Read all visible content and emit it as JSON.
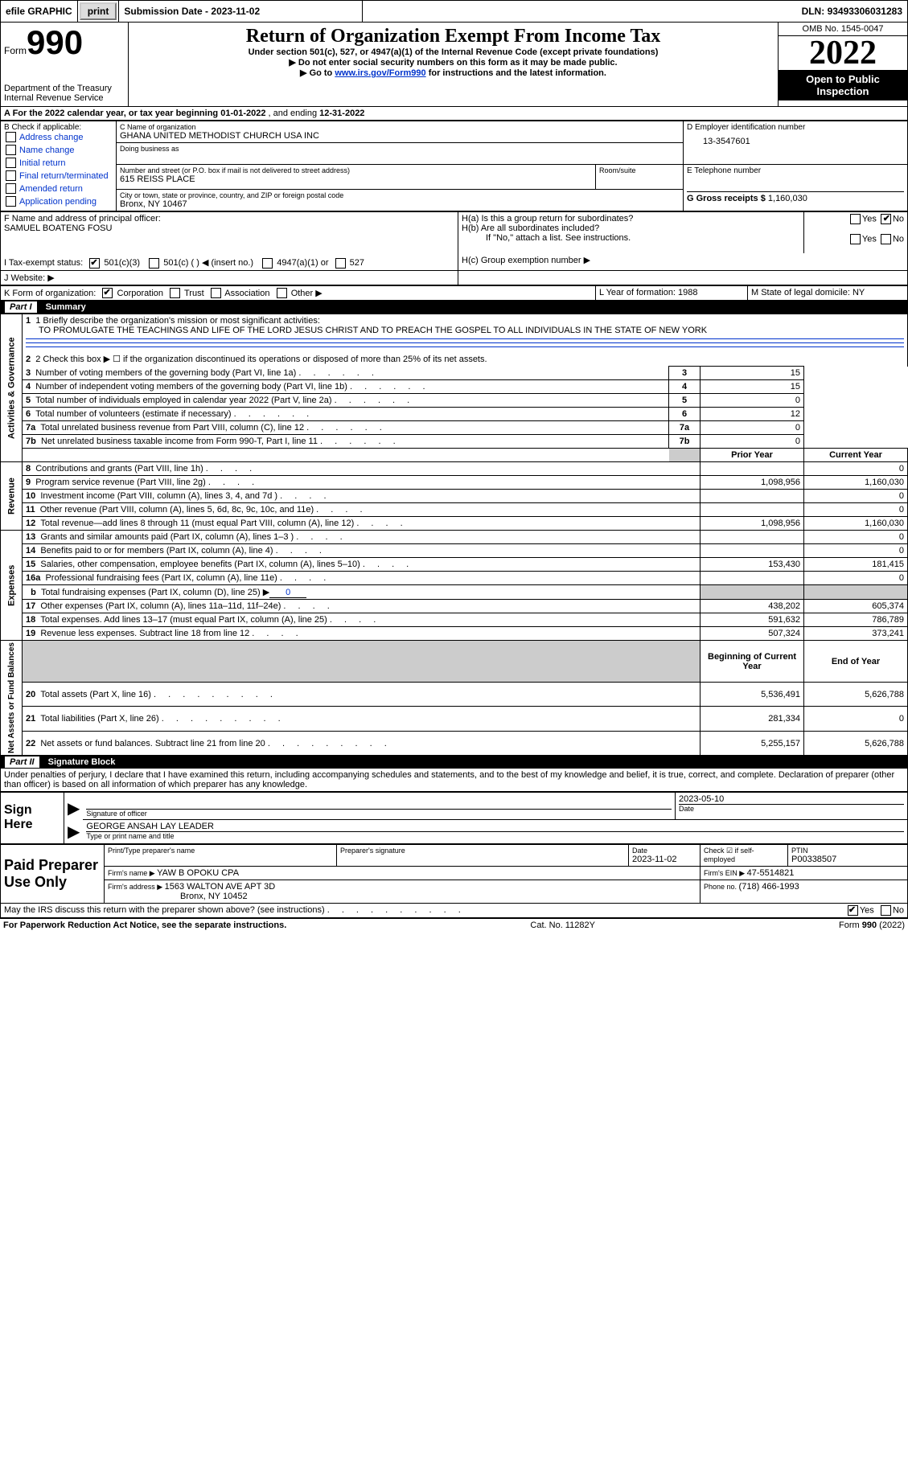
{
  "top_bar": {
    "efile": "efile GRAPHIC",
    "print": "print",
    "sub_date_label": "Submission Date - ",
    "sub_date": "2023-11-02",
    "dln_label": "DLN: ",
    "dln": "93493306031283"
  },
  "header": {
    "form_word": "Form",
    "form_num": "990",
    "dept": "Department of the Treasury",
    "irs": "Internal Revenue Service",
    "title": "Return of Organization Exempt From Income Tax",
    "subtitle": "Under section 501(c), 527, or 4947(a)(1) of the Internal Revenue Code (except private foundations)",
    "arrow1": "▶ Do not enter social security numbers on this form as it may be made public.",
    "arrow2_pre": "▶ Go to ",
    "arrow2_link": "www.irs.gov/Form990",
    "arrow2_post": " for instructions and the latest information.",
    "omb": "OMB No. 1545-0047",
    "year": "2022",
    "open": "Open to Public Inspection"
  },
  "line_a": {
    "text_pre": "A For the 2022 calendar year, or tax year beginning ",
    "begin": "01-01-2022",
    "mid": " , and ending ",
    "end": "12-31-2022"
  },
  "box_b": {
    "label": "B Check if applicable:",
    "opts": [
      "Address change",
      "Name change",
      "Initial return",
      "Final return/terminated",
      "Amended return",
      "Application pending"
    ]
  },
  "box_c": {
    "name_label": "C Name of organization",
    "name": "GHANA UNITED METHODIST CHURCH USA INC",
    "dba_label": "Doing business as",
    "street_label": "Number and street (or P.O. box if mail is not delivered to street address)",
    "street": "615 REISS PLACE",
    "room_label": "Room/suite",
    "city_label": "City or town, state or province, country, and ZIP or foreign postal code",
    "city": "Bronx, NY  10467"
  },
  "box_d": {
    "label": "D Employer identification number",
    "val": "13-3547601"
  },
  "box_e": {
    "label": "E Telephone number"
  },
  "box_g": {
    "label": "G Gross receipts $ ",
    "val": "1,160,030"
  },
  "box_f": {
    "label": "F Name and address of principal officer:",
    "val": "SAMUEL BOATENG FOSU"
  },
  "box_h": {
    "a_label": "H(a)  Is this a group return for subordinates?",
    "b_label": "H(b)  Are all subordinates included?",
    "b_note": "If \"No,\" attach a list. See instructions.",
    "c_label": "H(c)  Group exemption number ▶",
    "yes": "Yes",
    "no": "No"
  },
  "box_i": {
    "label": "I  Tax-exempt status:",
    "c3": "501(c)(3)",
    "c": "501(c) (   ) ◀ (insert no.)",
    "a1": "4947(a)(1) or",
    "s527": "527"
  },
  "box_j": {
    "label": "J  Website: ▶"
  },
  "box_k": {
    "label": "K Form of organization:",
    "corp": "Corporation",
    "trust": "Trust",
    "assoc": "Association",
    "other": "Other ▶"
  },
  "box_l": {
    "label": "L Year of formation: ",
    "val": "1988"
  },
  "box_m": {
    "label": "M State of legal domicile: ",
    "val": "NY"
  },
  "part1_header": {
    "num": "Part I",
    "title": "Summary"
  },
  "summary": {
    "s1_label": "1  Briefly describe the organization's mission or most significant activities:",
    "s1_text": "TO PROMULGATE THE TEACHINGS AND LIFE OF THE LORD JESUS CHRIST AND TO PREACH THE GOSPEL TO ALL INDIVIDUALS IN THE STATE OF NEW YORK",
    "s2": "2   Check this box ▶ ☐  if the organization discontinued its operations or disposed of more than 25% of its net assets.",
    "rows_top": [
      {
        "num": "3",
        "label": "Number of voting members of the governing body (Part VI, line 1a)",
        "val": "15"
      },
      {
        "num": "4",
        "label": "Number of independent voting members of the governing body (Part VI, line 1b)",
        "val": "15"
      },
      {
        "num": "5",
        "label": "Total number of individuals employed in calendar year 2022 (Part V, line 2a)",
        "val": "0"
      },
      {
        "num": "6",
        "label": "Total number of volunteers (estimate if necessary)",
        "val": "12"
      },
      {
        "num": "7a",
        "label": "Total unrelated business revenue from Part VIII, column (C), line 12",
        "val": "0"
      },
      {
        "num": "7b",
        "label": "Net unrelated business taxable income from Form 990-T, Part I, line 11",
        "val": "0"
      }
    ],
    "col_prior": "Prior Year",
    "col_curr": "Current Year",
    "revenue": [
      {
        "num": "8",
        "label": "Contributions and grants (Part VIII, line 1h)",
        "p": "",
        "c": "0"
      },
      {
        "num": "9",
        "label": "Program service revenue (Part VIII, line 2g)",
        "p": "1,098,956",
        "c": "1,160,030"
      },
      {
        "num": "10",
        "label": "Investment income (Part VIII, column (A), lines 3, 4, and 7d )",
        "p": "",
        "c": "0"
      },
      {
        "num": "11",
        "label": "Other revenue (Part VIII, column (A), lines 5, 6d, 8c, 9c, 10c, and 11e)",
        "p": "",
        "c": "0"
      },
      {
        "num": "12",
        "label": "Total revenue—add lines 8 through 11 (must equal Part VIII, column (A), line 12)",
        "p": "1,098,956",
        "c": "1,160,030"
      }
    ],
    "expenses": [
      {
        "num": "13",
        "label": "Grants and similar amounts paid (Part IX, column (A), lines 1–3 )",
        "p": "",
        "c": "0"
      },
      {
        "num": "14",
        "label": "Benefits paid to or for members (Part IX, column (A), line 4)",
        "p": "",
        "c": "0"
      },
      {
        "num": "15",
        "label": "Salaries, other compensation, employee benefits (Part IX, column (A), lines 5–10)",
        "p": "153,430",
        "c": "181,415"
      },
      {
        "num": "16a",
        "label": "Professional fundraising fees (Part IX, column (A), line 11e)",
        "p": "",
        "c": "0"
      },
      {
        "num": "b",
        "label": "Total fundraising expenses (Part IX, column (D), line 25) ▶",
        "val": "0",
        "gray": true
      },
      {
        "num": "17",
        "label": "Other expenses (Part IX, column (A), lines 11a–11d, 11f–24e)",
        "p": "438,202",
        "c": "605,374"
      },
      {
        "num": "18",
        "label": "Total expenses. Add lines 13–17 (must equal Part IX, column (A), line 25)",
        "p": "591,632",
        "c": "786,789"
      },
      {
        "num": "19",
        "label": "Revenue less expenses. Subtract line 18 from line 12",
        "p": "507,324",
        "c": "373,241"
      }
    ],
    "col_begin": "Beginning of Current Year",
    "col_end": "End of Year",
    "netassets": [
      {
        "num": "20",
        "label": "Total assets (Part X, line 16)",
        "p": "5,536,491",
        "c": "5,626,788"
      },
      {
        "num": "21",
        "label": "Total liabilities (Part X, line 26)",
        "p": "281,334",
        "c": "0"
      },
      {
        "num": "22",
        "label": "Net assets or fund balances. Subtract line 21 from line 20",
        "p": "5,255,157",
        "c": "5,626,788"
      }
    ]
  },
  "sidebar": {
    "act": "Activities & Governance",
    "rev": "Revenue",
    "exp": "Expenses",
    "net": "Net Assets or Fund Balances"
  },
  "part2_header": {
    "num": "Part II",
    "title": "Signature Block"
  },
  "sig": {
    "declaration": "Under penalties of perjury, I declare that I have examined this return, including accompanying schedules and statements, and to the best of my knowledge and belief, it is true, correct, and complete. Declaration of preparer (other than officer) is based on all information of which preparer has any knowledge.",
    "sign_here": "Sign Here",
    "sig_officer": "Signature of officer",
    "sig_date_lbl": "Date",
    "sig_date": "2023-05-10",
    "name_title": "GEORGE ANSAH  LAY LEADER",
    "name_title_lbl": "Type or print name and title",
    "paid_prep": "Paid Preparer Use Only",
    "pp_name_lbl": "Print/Type preparer's name",
    "pp_sig_lbl": "Preparer's signature",
    "pp_date_lbl": "Date",
    "pp_date": "2023-11-02",
    "pp_check_lbl": "Check ☑ if self-employed",
    "pp_ptin_lbl": "PTIN",
    "pp_ptin": "P00338507",
    "firm_name_lbl": "Firm's name     ▶ ",
    "firm_name": "YAW B OPOKU CPA",
    "firm_ein_lbl": "Firm's EIN ▶ ",
    "firm_ein": "47-5514821",
    "firm_addr_lbl": "Firm's address ▶ ",
    "firm_addr1": "1563 WALTON AVE APT 3D",
    "firm_addr2": "Bronx, NY  10452",
    "firm_phone_lbl": "Phone no. ",
    "firm_phone": "(718) 466-1993",
    "discuss": "May the IRS discuss this return with the preparer shown above? (see instructions)",
    "yes": "Yes",
    "no": "No"
  },
  "footer": {
    "pra": "For Paperwork Reduction Act Notice, see the separate instructions.",
    "cat": "Cat. No. 11282Y",
    "form": "Form 990 (2022)"
  }
}
